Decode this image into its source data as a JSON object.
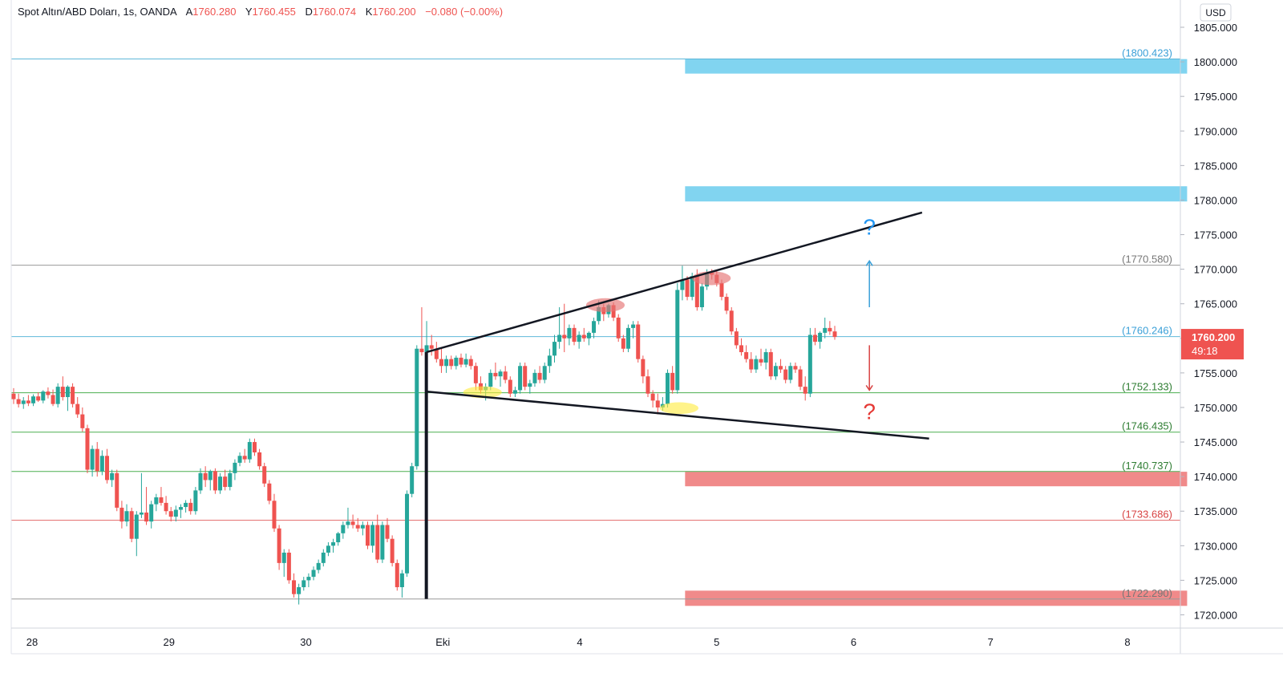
{
  "header": {
    "symbol": "Spot Altın/ABD Doları, 1s, OANDA",
    "open_label": "A",
    "open": "1760.280",
    "high_label": "Y",
    "high": "1760.455",
    "low_label": "D",
    "low": "1760.074",
    "close_label": "K",
    "close": "1760.200",
    "change": "−0.080 (−0.00%)"
  },
  "currency": "USD",
  "last_price": {
    "price": "1760.200",
    "countdown": "49:18"
  },
  "colors": {
    "up": "#26a69a",
    "down": "#ef5350",
    "zone_blue": "#81d4f0",
    "zone_red": "#f08a8a",
    "level_gray": "#999999",
    "level_blue": "#5fb8d9",
    "level_green": "#4caf50",
    "level_red": "#e57373",
    "trendline": "#131722",
    "grid": "#ffffff",
    "axis_text": "#131722"
  },
  "chart_data": {
    "type": "candlestick",
    "title": "",
    "ylim": [
      1717.7,
      1807.5
    ],
    "y_ticks": [
      "1805.000",
      "1800.000",
      "1795.000",
      "1790.000",
      "1785.000",
      "1780.000",
      "1775.000",
      "1770.000",
      "1765.000",
      "1760.000",
      "1755.000",
      "1750.000",
      "1745.000",
      "1740.000",
      "1735.000",
      "1730.000",
      "1725.000",
      "1720.000"
    ],
    "x_ticks": [
      {
        "label": "28",
        "t": 1
      },
      {
        "label": "29",
        "t": 40
      },
      {
        "label": "30",
        "t": 79
      },
      {
        "label": "Eki",
        "t": 118
      },
      {
        "label": "4",
        "t": 157
      },
      {
        "label": "5",
        "t": 196
      },
      {
        "label": "6",
        "t": 235
      },
      {
        "label": "7",
        "t": 274
      },
      {
        "label": "8",
        "t": 313
      }
    ],
    "candle_start_t": 0,
    "candles": [
      [
        1752.0,
        1752.8,
        1750.5,
        1751.2
      ],
      [
        1751.2,
        1752.0,
        1750.0,
        1750.5
      ],
      [
        1750.5,
        1751.5,
        1749.8,
        1751.0
      ],
      [
        1751.0,
        1751.8,
        1750.2,
        1750.6
      ],
      [
        1750.6,
        1751.9,
        1750.2,
        1751.6
      ],
      [
        1751.6,
        1752.2,
        1750.8,
        1751.0
      ],
      [
        1751.0,
        1752.5,
        1750.6,
        1752.3
      ],
      [
        1752.3,
        1752.9,
        1751.3,
        1751.8
      ],
      [
        1751.8,
        1752.6,
        1750.2,
        1750.5
      ],
      [
        1750.5,
        1753.5,
        1750.0,
        1753.0
      ],
      [
        1753.0,
        1754.5,
        1751.0,
        1751.5
      ],
      [
        1751.5,
        1753.2,
        1749.5,
        1753.0
      ],
      [
        1753.0,
        1753.5,
        1750.0,
        1750.5
      ],
      [
        1750.5,
        1751.5,
        1748.5,
        1749.0
      ],
      [
        1749.0,
        1750.0,
        1746.5,
        1747.0
      ],
      [
        1747.0,
        1747.5,
        1740.5,
        1741.0
      ],
      [
        1741.0,
        1744.5,
        1740.0,
        1744.0
      ],
      [
        1744.0,
        1745.0,
        1740.0,
        1740.8
      ],
      [
        1740.8,
        1743.8,
        1740.2,
        1743.0
      ],
      [
        1743.0,
        1744.0,
        1739.0,
        1739.5
      ],
      [
        1739.5,
        1741.0,
        1738.5,
        1740.5
      ],
      [
        1740.5,
        1741.0,
        1735.0,
        1735.5
      ],
      [
        1735.5,
        1736.5,
        1732.5,
        1733.5
      ],
      [
        1733.5,
        1736.0,
        1732.8,
        1735.0
      ],
      [
        1735.0,
        1735.5,
        1730.5,
        1731.0
      ],
      [
        1731.0,
        1735.0,
        1728.5,
        1734.5
      ],
      [
        1734.5,
        1740.5,
        1734.0,
        1734.8
      ],
      [
        1734.8,
        1738.5,
        1733.0,
        1733.5
      ],
      [
        1733.5,
        1736.5,
        1732.5,
        1736.0
      ],
      [
        1736.0,
        1737.5,
        1735.0,
        1737.0
      ],
      [
        1737.0,
        1738.5,
        1735.8,
        1736.2
      ],
      [
        1736.2,
        1737.2,
        1734.5,
        1735.0
      ],
      [
        1735.0,
        1735.6,
        1733.5,
        1734.2
      ],
      [
        1734.2,
        1735.8,
        1733.5,
        1735.2
      ],
      [
        1735.2,
        1736.0,
        1734.0,
        1735.6
      ],
      [
        1735.6,
        1736.6,
        1734.8,
        1736.2
      ],
      [
        1736.2,
        1736.8,
        1734.5,
        1735.0
      ],
      [
        1735.0,
        1738.5,
        1734.5,
        1738.0
      ],
      [
        1738.0,
        1741.2,
        1737.5,
        1740.5
      ],
      [
        1740.5,
        1741.5,
        1738.5,
        1739.5
      ],
      [
        1739.5,
        1741.0,
        1738.0,
        1740.8
      ],
      [
        1740.8,
        1741.2,
        1737.5,
        1738.0
      ],
      [
        1738.0,
        1740.5,
        1737.5,
        1740.0
      ],
      [
        1740.0,
        1741.0,
        1738.0,
        1738.5
      ],
      [
        1738.5,
        1741.0,
        1738.0,
        1740.5
      ],
      [
        1740.5,
        1742.5,
        1739.5,
        1742.0
      ],
      [
        1742.0,
        1743.5,
        1741.5,
        1743.0
      ],
      [
        1743.0,
        1744.0,
        1742.0,
        1742.5
      ],
      [
        1742.5,
        1745.5,
        1742.0,
        1745.0
      ],
      [
        1745.0,
        1745.5,
        1743.0,
        1743.5
      ],
      [
        1743.5,
        1744.0,
        1741.0,
        1741.5
      ],
      [
        1741.5,
        1742.0,
        1738.5,
        1739.0
      ],
      [
        1739.0,
        1739.5,
        1736.0,
        1736.5
      ],
      [
        1736.5,
        1737.5,
        1732.0,
        1732.5
      ],
      [
        1732.5,
        1733.0,
        1726.5,
        1727.5
      ],
      [
        1727.5,
        1729.5,
        1725.5,
        1729.0
      ],
      [
        1729.0,
        1729.5,
        1724.5,
        1725.0
      ],
      [
        1725.0,
        1726.0,
        1722.5,
        1723.0
      ],
      [
        1723.0,
        1724.5,
        1721.5,
        1724.0
      ],
      [
        1724.0,
        1725.5,
        1723.5,
        1725.0
      ],
      [
        1725.0,
        1726.0,
        1724.0,
        1725.5
      ],
      [
        1725.5,
        1727.0,
        1725.0,
        1726.5
      ],
      [
        1726.5,
        1728.0,
        1726.0,
        1727.5
      ],
      [
        1727.5,
        1729.5,
        1727.0,
        1729.0
      ],
      [
        1729.0,
        1730.5,
        1728.5,
        1730.0
      ],
      [
        1730.0,
        1731.0,
        1729.0,
        1730.5
      ],
      [
        1730.5,
        1732.0,
        1730.0,
        1731.8
      ],
      [
        1731.8,
        1733.5,
        1731.0,
        1733.0
      ],
      [
        1733.0,
        1735.5,
        1732.5,
        1733.5
      ],
      [
        1733.5,
        1734.5,
        1732.5,
        1733.0
      ],
      [
        1733.0,
        1734.0,
        1732.0,
        1732.5
      ],
      [
        1732.5,
        1733.5,
        1731.5,
        1733.0
      ],
      [
        1733.0,
        1733.5,
        1729.5,
        1730.0
      ],
      [
        1730.0,
        1733.5,
        1729.0,
        1733.0
      ],
      [
        1733.0,
        1734.5,
        1727.5,
        1728.0
      ],
      [
        1728.0,
        1733.5,
        1727.5,
        1733.0
      ],
      [
        1733.0,
        1734.0,
        1730.5,
        1731.0
      ],
      [
        1731.0,
        1731.5,
        1727.0,
        1727.5
      ],
      [
        1727.5,
        1728.0,
        1723.5,
        1724.0
      ],
      [
        1724.0,
        1726.5,
        1722.5,
        1726.0
      ],
      [
        1726.0,
        1738.0,
        1725.5,
        1737.5
      ],
      [
        1737.5,
        1742.0,
        1737.0,
        1741.5
      ],
      [
        1741.5,
        1759.0,
        1741.0,
        1758.5
      ],
      [
        1758.5,
        1764.5,
        1757.5,
        1758.0
      ],
      [
        1758.0,
        1762.5,
        1757.0,
        1759.0
      ],
      [
        1759.0,
        1760.5,
        1757.5,
        1758.5
      ],
      [
        1758.5,
        1759.5,
        1756.5,
        1757.0
      ],
      [
        1757.0,
        1758.5,
        1755.0,
        1756.0
      ],
      [
        1756.0,
        1757.5,
        1755.0,
        1757.0
      ],
      [
        1757.0,
        1757.5,
        1755.5,
        1756.0
      ],
      [
        1756.0,
        1757.5,
        1755.5,
        1757.2
      ],
      [
        1757.2,
        1757.8,
        1755.8,
        1756.2
      ],
      [
        1756.2,
        1757.8,
        1755.8,
        1757.0
      ],
      [
        1757.0,
        1757.5,
        1755.5,
        1756.0
      ],
      [
        1756.0,
        1756.5,
        1752.5,
        1753.5
      ],
      [
        1753.5,
        1754.5,
        1752.0,
        1752.5
      ],
      [
        1752.5,
        1753.5,
        1751.0,
        1753.0
      ],
      [
        1753.0,
        1755.5,
        1752.5,
        1755.0
      ],
      [
        1755.0,
        1756.5,
        1754.0,
        1754.5
      ],
      [
        1754.5,
        1755.5,
        1753.0,
        1755.2
      ],
      [
        1755.2,
        1756.0,
        1753.5,
        1754.0
      ],
      [
        1754.0,
        1754.5,
        1751.5,
        1752.0
      ],
      [
        1752.0,
        1753.0,
        1751.5,
        1752.5
      ],
      [
        1752.5,
        1756.5,
        1752.0,
        1756.0
      ],
      [
        1756.0,
        1756.5,
        1752.5,
        1753.0
      ],
      [
        1753.0,
        1754.0,
        1752.0,
        1753.5
      ],
      [
        1753.5,
        1755.5,
        1753.0,
        1755.0
      ],
      [
        1755.0,
        1756.0,
        1753.5,
        1754.0
      ],
      [
        1754.0,
        1756.5,
        1753.5,
        1756.0
      ],
      [
        1756.0,
        1758.5,
        1755.0,
        1757.5
      ],
      [
        1757.5,
        1760.5,
        1756.5,
        1759.5
      ],
      [
        1759.5,
        1764.5,
        1758.5,
        1760.5
      ],
      [
        1760.5,
        1765.0,
        1758.0,
        1760.0
      ],
      [
        1760.0,
        1762.0,
        1759.0,
        1761.5
      ],
      [
        1761.5,
        1762.0,
        1759.0,
        1759.5
      ],
      [
        1759.5,
        1761.0,
        1758.5,
        1760.5
      ],
      [
        1760.5,
        1761.5,
        1759.5,
        1760.0
      ],
      [
        1760.0,
        1761.0,
        1759.0,
        1760.8
      ],
      [
        1760.8,
        1763.0,
        1760.0,
        1762.5
      ],
      [
        1762.5,
        1765.5,
        1762.0,
        1764.5
      ],
      [
        1764.5,
        1765.0,
        1762.5,
        1763.5
      ],
      [
        1763.5,
        1765.0,
        1763.0,
        1764.8
      ],
      [
        1764.8,
        1765.2,
        1762.5,
        1763.0
      ],
      [
        1763.0,
        1763.5,
        1759.5,
        1760.0
      ],
      [
        1760.0,
        1760.5,
        1758.0,
        1758.5
      ],
      [
        1758.5,
        1762.0,
        1758.0,
        1761.5
      ],
      [
        1761.5,
        1762.5,
        1760.0,
        1762.0
      ],
      [
        1762.0,
        1762.5,
        1756.5,
        1757.0
      ],
      [
        1757.0,
        1757.5,
        1753.5,
        1754.5
      ],
      [
        1754.5,
        1755.5,
        1751.5,
        1752.0
      ],
      [
        1752.0,
        1752.5,
        1750.0,
        1751.0
      ],
      [
        1751.0,
        1752.0,
        1749.0,
        1750.0
      ],
      [
        1750.0,
        1751.5,
        1749.5,
        1750.5
      ],
      [
        1750.5,
        1755.5,
        1750.0,
        1755.0
      ],
      [
        1755.0,
        1756.0,
        1752.0,
        1752.5
      ],
      [
        1752.5,
        1768.0,
        1752.0,
        1767.0
      ],
      [
        1767.0,
        1770.5,
        1765.5,
        1768.5
      ],
      [
        1768.5,
        1769.0,
        1765.5,
        1766.0
      ],
      [
        1766.0,
        1769.5,
        1765.5,
        1769.0
      ],
      [
        1769.0,
        1770.0,
        1764.0,
        1764.5
      ],
      [
        1764.5,
        1768.0,
        1764.0,
        1767.5
      ],
      [
        1767.5,
        1770.0,
        1767.0,
        1769.5
      ],
      [
        1769.5,
        1770.0,
        1768.5,
        1769.2
      ],
      [
        1769.2,
        1769.8,
        1767.5,
        1768.0
      ],
      [
        1768.0,
        1768.5,
        1765.5,
        1766.0
      ],
      [
        1766.0,
        1766.5,
        1763.5,
        1764.0
      ],
      [
        1764.0,
        1764.5,
        1760.5,
        1761.0
      ],
      [
        1761.0,
        1761.5,
        1758.5,
        1759.0
      ],
      [
        1759.0,
        1760.0,
        1757.5,
        1758.0
      ],
      [
        1758.0,
        1759.0,
        1756.5,
        1757.0
      ],
      [
        1757.0,
        1758.0,
        1755.0,
        1755.5
      ],
      [
        1755.5,
        1757.5,
        1755.0,
        1757.0
      ],
      [
        1757.0,
        1758.5,
        1756.0,
        1756.5
      ],
      [
        1756.5,
        1758.5,
        1755.5,
        1758.0
      ],
      [
        1758.0,
        1758.5,
        1754.0,
        1754.5
      ],
      [
        1754.5,
        1756.5,
        1754.0,
        1756.0
      ],
      [
        1756.0,
        1757.0,
        1755.0,
        1755.5
      ],
      [
        1755.5,
        1756.0,
        1753.5,
        1754.0
      ],
      [
        1754.0,
        1756.5,
        1753.5,
        1756.0
      ],
      [
        1756.0,
        1756.5,
        1755.0,
        1755.5
      ],
      [
        1755.5,
        1756.0,
        1752.5,
        1753.0
      ],
      [
        1753.0,
        1754.5,
        1751.0,
        1752.0
      ],
      [
        1752.0,
        1761.5,
        1751.5,
        1760.5
      ],
      [
        1760.5,
        1761.5,
        1759.0,
        1759.5
      ],
      [
        1759.5,
        1761.0,
        1758.5,
        1760.8
      ],
      [
        1760.8,
        1763.0,
        1760.0,
        1761.5
      ],
      [
        1761.5,
        1762.5,
        1760.5,
        1761.0
      ],
      [
        1761.0,
        1761.8,
        1759.8,
        1760.2
      ]
    ],
    "candle_overrides": {
      "note_hidden": false
    },
    "levels": [
      {
        "price": 1800.423,
        "label": "(1800.423)",
        "style": "blue"
      },
      {
        "price": 1770.58,
        "label": "(1770.580)",
        "style": "gray"
      },
      {
        "price": 1760.246,
        "label": "(1760.246)",
        "style": "blue"
      },
      {
        "price": 1752.133,
        "label": "(1752.133)",
        "style": "green"
      },
      {
        "price": 1746.435,
        "label": "(1746.435)",
        "style": "green"
      },
      {
        "price": 1740.737,
        "label": "(1740.737)",
        "style": "green"
      },
      {
        "price": 1733.686,
        "label": "(1733.686)",
        "style": "red"
      },
      {
        "price": 1722.29,
        "label": "(1722.290)",
        "style": "gray"
      }
    ],
    "zones": [
      {
        "t_start": 187,
        "t_end": 330,
        "p_low": 1798.3,
        "p_high": 1800.4,
        "style": "blue"
      },
      {
        "t_start": 187,
        "t_end": 330,
        "p_low": 1779.8,
        "p_high": 1782.0,
        "style": "blue"
      },
      {
        "t_start": 187,
        "t_end": 330,
        "p_low": 1738.6,
        "p_high": 1740.7,
        "style": "red"
      },
      {
        "t_start": 187,
        "t_end": 330,
        "p_low": 1721.3,
        "p_high": 1723.5,
        "style": "red"
      }
    ],
    "trendlines": [
      {
        "t1": 113,
        "p1": 1758.0,
        "t2": 111.3,
        "p2": 1758.0,
        "kind": "none"
      },
      {
        "t1": 113.3,
        "p1": 1758.0,
        "t2": 254.5,
        "p2": 1778.2
      },
      {
        "t1": 113.3,
        "p1": 1752.3,
        "t2": 256.5,
        "p2": 1745.5
      },
      {
        "t1": 113.3,
        "p1": 1722.3,
        "t2": 113.3,
        "p2": 1758.0
      }
    ],
    "ellipses": [
      {
        "t": 129.3,
        "p": 1752.2,
        "rt": 5.5,
        "rp": 0.85,
        "style": "yellow"
      },
      {
        "t": 185.3,
        "p": 1749.9,
        "rt": 5.5,
        "rp": 0.85,
        "style": "yellow"
      },
      {
        "t": 164.3,
        "p": 1764.8,
        "rt": 5.5,
        "rp": 1.0,
        "style": "red"
      },
      {
        "t": 194.5,
        "p": 1768.7,
        "rt": 5.5,
        "rp": 1.0,
        "style": "red"
      }
    ],
    "arrows": [
      {
        "t": 239.5,
        "p_from": 1764.5,
        "p_to": 1771.2,
        "style": "blue"
      },
      {
        "t": 239.5,
        "p_from": 1759.0,
        "p_to": 1752.5,
        "style": "red"
      }
    ],
    "question_marks": [
      {
        "t": 239.5,
        "p": 1775.0,
        "text": "?",
        "style": "blue"
      },
      {
        "t": 239.5,
        "p": 1748.3,
        "text": "?",
        "style": "red"
      }
    ]
  }
}
